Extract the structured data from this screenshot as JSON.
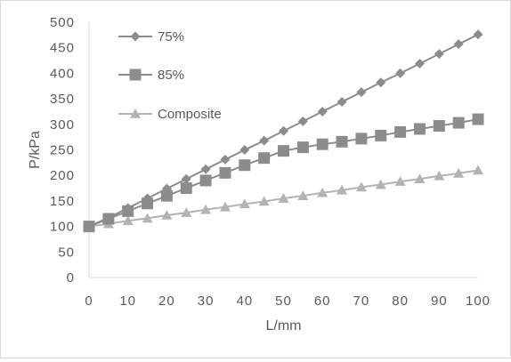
{
  "chart_data": {
    "type": "line",
    "x": [
      0,
      5,
      10,
      15,
      20,
      25,
      30,
      35,
      40,
      45,
      50,
      55,
      60,
      65,
      70,
      75,
      80,
      85,
      90,
      95,
      100
    ],
    "series": [
      {
        "name": "75%",
        "marker": "diamond",
        "color": "#8c8c8c",
        "values": [
          100,
          117,
          136,
          155,
          174,
          193,
          212,
          231,
          250,
          268,
          287,
          306,
          325,
          344,
          363,
          382,
          400,
          419,
          438,
          457,
          476
        ]
      },
      {
        "name": "85%",
        "marker": "square",
        "color": "#8c8c8c",
        "values": [
          100,
          115,
          130,
          145,
          160,
          175,
          190,
          205,
          220,
          234,
          248,
          255,
          261,
          266,
          272,
          278,
          285,
          291,
          297,
          303,
          310
        ]
      },
      {
        "name": "Composite",
        "marker": "triangle",
        "color": "#b3b3b3",
        "values": [
          100,
          105,
          111,
          116,
          122,
          127,
          133,
          138,
          144,
          149,
          155,
          160,
          166,
          171,
          177,
          182,
          188,
          193,
          199,
          204,
          210
        ]
      }
    ],
    "xlabel": "L/mm",
    "ylabel": "P/kPa",
    "xlim": [
      0,
      100
    ],
    "ylim": [
      0,
      500
    ],
    "xticks": [
      "0",
      "10",
      "20",
      "30",
      "40",
      "50",
      "60",
      "70",
      "80",
      "90",
      "100"
    ],
    "yticks": [
      "0",
      "50",
      "100",
      "150",
      "200",
      "250",
      "300",
      "350",
      "400",
      "450",
      "500"
    ],
    "grid": false,
    "legend_position": "top-left"
  }
}
